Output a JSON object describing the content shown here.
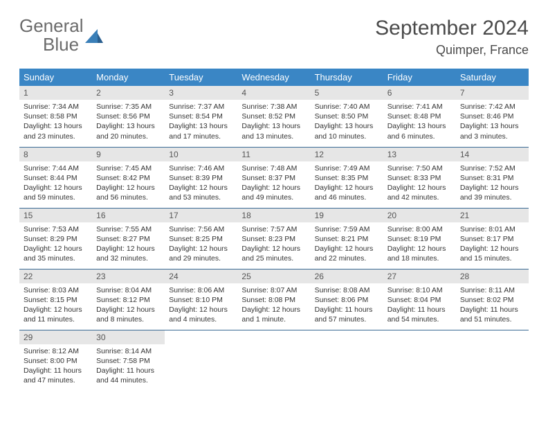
{
  "logo": {
    "word1": "General",
    "word2": "Blue"
  },
  "title": "September 2024",
  "location": "Quimper, France",
  "colors": {
    "header_bg": "#3a86c5",
    "header_text": "#ffffff",
    "daynum_bg": "#e6e6e6",
    "row_border": "#3a6a95",
    "logo_gray": "#6b6b6b",
    "logo_blue": "#3a7fb8"
  },
  "weekdays": [
    "Sunday",
    "Monday",
    "Tuesday",
    "Wednesday",
    "Thursday",
    "Friday",
    "Saturday"
  ],
  "weeks": [
    [
      {
        "n": "1",
        "sr": "Sunrise: 7:34 AM",
        "ss": "Sunset: 8:58 PM",
        "d1": "Daylight: 13 hours",
        "d2": "and 23 minutes."
      },
      {
        "n": "2",
        "sr": "Sunrise: 7:35 AM",
        "ss": "Sunset: 8:56 PM",
        "d1": "Daylight: 13 hours",
        "d2": "and 20 minutes."
      },
      {
        "n": "3",
        "sr": "Sunrise: 7:37 AM",
        "ss": "Sunset: 8:54 PM",
        "d1": "Daylight: 13 hours",
        "d2": "and 17 minutes."
      },
      {
        "n": "4",
        "sr": "Sunrise: 7:38 AM",
        "ss": "Sunset: 8:52 PM",
        "d1": "Daylight: 13 hours",
        "d2": "and 13 minutes."
      },
      {
        "n": "5",
        "sr": "Sunrise: 7:40 AM",
        "ss": "Sunset: 8:50 PM",
        "d1": "Daylight: 13 hours",
        "d2": "and 10 minutes."
      },
      {
        "n": "6",
        "sr": "Sunrise: 7:41 AM",
        "ss": "Sunset: 8:48 PM",
        "d1": "Daylight: 13 hours",
        "d2": "and 6 minutes."
      },
      {
        "n": "7",
        "sr": "Sunrise: 7:42 AM",
        "ss": "Sunset: 8:46 PM",
        "d1": "Daylight: 13 hours",
        "d2": "and 3 minutes."
      }
    ],
    [
      {
        "n": "8",
        "sr": "Sunrise: 7:44 AM",
        "ss": "Sunset: 8:44 PM",
        "d1": "Daylight: 12 hours",
        "d2": "and 59 minutes."
      },
      {
        "n": "9",
        "sr": "Sunrise: 7:45 AM",
        "ss": "Sunset: 8:42 PM",
        "d1": "Daylight: 12 hours",
        "d2": "and 56 minutes."
      },
      {
        "n": "10",
        "sr": "Sunrise: 7:46 AM",
        "ss": "Sunset: 8:39 PM",
        "d1": "Daylight: 12 hours",
        "d2": "and 53 minutes."
      },
      {
        "n": "11",
        "sr": "Sunrise: 7:48 AM",
        "ss": "Sunset: 8:37 PM",
        "d1": "Daylight: 12 hours",
        "d2": "and 49 minutes."
      },
      {
        "n": "12",
        "sr": "Sunrise: 7:49 AM",
        "ss": "Sunset: 8:35 PM",
        "d1": "Daylight: 12 hours",
        "d2": "and 46 minutes."
      },
      {
        "n": "13",
        "sr": "Sunrise: 7:50 AM",
        "ss": "Sunset: 8:33 PM",
        "d1": "Daylight: 12 hours",
        "d2": "and 42 minutes."
      },
      {
        "n": "14",
        "sr": "Sunrise: 7:52 AM",
        "ss": "Sunset: 8:31 PM",
        "d1": "Daylight: 12 hours",
        "d2": "and 39 minutes."
      }
    ],
    [
      {
        "n": "15",
        "sr": "Sunrise: 7:53 AM",
        "ss": "Sunset: 8:29 PM",
        "d1": "Daylight: 12 hours",
        "d2": "and 35 minutes."
      },
      {
        "n": "16",
        "sr": "Sunrise: 7:55 AM",
        "ss": "Sunset: 8:27 PM",
        "d1": "Daylight: 12 hours",
        "d2": "and 32 minutes."
      },
      {
        "n": "17",
        "sr": "Sunrise: 7:56 AM",
        "ss": "Sunset: 8:25 PM",
        "d1": "Daylight: 12 hours",
        "d2": "and 29 minutes."
      },
      {
        "n": "18",
        "sr": "Sunrise: 7:57 AM",
        "ss": "Sunset: 8:23 PM",
        "d1": "Daylight: 12 hours",
        "d2": "and 25 minutes."
      },
      {
        "n": "19",
        "sr": "Sunrise: 7:59 AM",
        "ss": "Sunset: 8:21 PM",
        "d1": "Daylight: 12 hours",
        "d2": "and 22 minutes."
      },
      {
        "n": "20",
        "sr": "Sunrise: 8:00 AM",
        "ss": "Sunset: 8:19 PM",
        "d1": "Daylight: 12 hours",
        "d2": "and 18 minutes."
      },
      {
        "n": "21",
        "sr": "Sunrise: 8:01 AM",
        "ss": "Sunset: 8:17 PM",
        "d1": "Daylight: 12 hours",
        "d2": "and 15 minutes."
      }
    ],
    [
      {
        "n": "22",
        "sr": "Sunrise: 8:03 AM",
        "ss": "Sunset: 8:15 PM",
        "d1": "Daylight: 12 hours",
        "d2": "and 11 minutes."
      },
      {
        "n": "23",
        "sr": "Sunrise: 8:04 AM",
        "ss": "Sunset: 8:12 PM",
        "d1": "Daylight: 12 hours",
        "d2": "and 8 minutes."
      },
      {
        "n": "24",
        "sr": "Sunrise: 8:06 AM",
        "ss": "Sunset: 8:10 PM",
        "d1": "Daylight: 12 hours",
        "d2": "and 4 minutes."
      },
      {
        "n": "25",
        "sr": "Sunrise: 8:07 AM",
        "ss": "Sunset: 8:08 PM",
        "d1": "Daylight: 12 hours",
        "d2": "and 1 minute."
      },
      {
        "n": "26",
        "sr": "Sunrise: 8:08 AM",
        "ss": "Sunset: 8:06 PM",
        "d1": "Daylight: 11 hours",
        "d2": "and 57 minutes."
      },
      {
        "n": "27",
        "sr": "Sunrise: 8:10 AM",
        "ss": "Sunset: 8:04 PM",
        "d1": "Daylight: 11 hours",
        "d2": "and 54 minutes."
      },
      {
        "n": "28",
        "sr": "Sunrise: 8:11 AM",
        "ss": "Sunset: 8:02 PM",
        "d1": "Daylight: 11 hours",
        "d2": "and 51 minutes."
      }
    ],
    [
      {
        "n": "29",
        "sr": "Sunrise: 8:12 AM",
        "ss": "Sunset: 8:00 PM",
        "d1": "Daylight: 11 hours",
        "d2": "and 47 minutes."
      },
      {
        "n": "30",
        "sr": "Sunrise: 8:14 AM",
        "ss": "Sunset: 7:58 PM",
        "d1": "Daylight: 11 hours",
        "d2": "and 44 minutes."
      },
      null,
      null,
      null,
      null,
      null
    ]
  ]
}
